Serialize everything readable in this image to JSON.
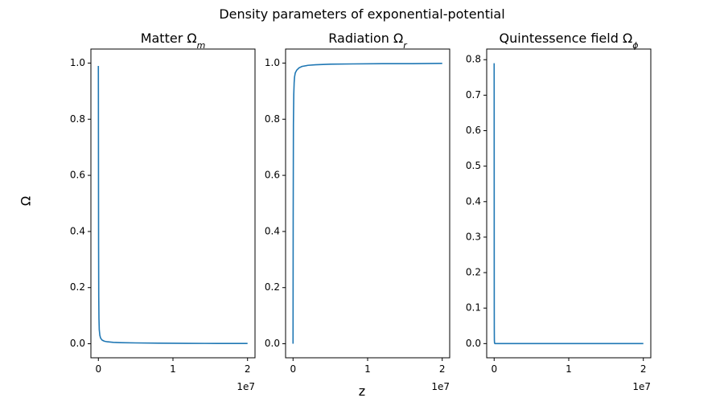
{
  "figure": {
    "suptitle": "Density parameters of exponential-potential",
    "ylabel": "Ω",
    "xlabel": "z"
  },
  "chart_data": [
    {
      "type": "line",
      "title": "Matter Ω",
      "title_sub": "m",
      "x_offset_label": "1e7",
      "xlim": [
        -0.1,
        2.1
      ],
      "ylim": [
        -0.05,
        1.05
      ],
      "xticks": [
        0,
        1,
        2
      ],
      "yticks": [
        0.0,
        0.2,
        0.4,
        0.6,
        0.8,
        1.0
      ],
      "ytick_labels": [
        "0.0",
        "0.2",
        "0.4",
        "0.6",
        "0.8",
        "1.0"
      ],
      "series": [
        {
          "color": "#1f77b4",
          "x": [
            0,
            0.0006,
            0.0012,
            0.002,
            0.003,
            0.005,
            0.008,
            0.012,
            0.02,
            0.03,
            0.05,
            0.08,
            0.12,
            0.2,
            0.3,
            0.5,
            0.8,
            1.2,
            1.6,
            2.0
          ],
          "y": [
            0.99,
            0.9,
            0.75,
            0.55,
            0.35,
            0.17,
            0.09,
            0.05,
            0.03,
            0.02,
            0.013,
            0.009,
            0.007,
            0.005,
            0.004,
            0.003,
            0.002,
            0.0015,
            0.001,
            0.001
          ]
        }
      ]
    },
    {
      "type": "line",
      "title": "Radiation Ω",
      "title_sub": "r",
      "x_offset_label": "1e7",
      "xlim": [
        -0.1,
        2.1
      ],
      "ylim": [
        -0.05,
        1.05
      ],
      "xticks": [
        0,
        1,
        2
      ],
      "yticks": [
        0.0,
        0.2,
        0.4,
        0.6,
        0.8,
        1.0
      ],
      "ytick_labels": [
        "0.0",
        "0.2",
        "0.4",
        "0.6",
        "0.8",
        "1.0"
      ],
      "series": [
        {
          "color": "#1f77b4",
          "x": [
            0,
            0.002,
            0.005,
            0.01,
            0.015,
            0.02,
            0.03,
            0.05,
            0.08,
            0.12,
            0.2,
            0.3,
            0.5,
            0.8,
            1.2,
            1.6,
            2.0
          ],
          "y": [
            0.0,
            0.45,
            0.78,
            0.89,
            0.93,
            0.95,
            0.965,
            0.975,
            0.983,
            0.988,
            0.992,
            0.994,
            0.996,
            0.997,
            0.998,
            0.998,
            0.999
          ]
        }
      ]
    },
    {
      "type": "line",
      "title": "Quintessence field Ω",
      "title_sub": "ϕ",
      "x_offset_label": "1e7",
      "xlim": [
        -0.1,
        2.1
      ],
      "ylim": [
        -0.04,
        0.83
      ],
      "xticks": [
        0,
        1,
        2
      ],
      "yticks": [
        0.0,
        0.1,
        0.2,
        0.3,
        0.4,
        0.5,
        0.6,
        0.7,
        0.8
      ],
      "ytick_labels": [
        "0.0",
        "0.1",
        "0.2",
        "0.3",
        "0.4",
        "0.5",
        "0.6",
        "0.7",
        "0.8"
      ],
      "series": [
        {
          "color": "#1f77b4",
          "x": [
            0,
            0.0003,
            0.0007,
            0.001,
            0.0015,
            0.002,
            0.003,
            0.005,
            0.01,
            0.05,
            0.2,
            0.5,
            1.0,
            1.5,
            2.0
          ],
          "y": [
            0.79,
            0.7,
            0.45,
            0.25,
            0.1,
            0.04,
            0.01,
            0.002,
            0.0,
            0.0,
            0.0,
            0.0,
            0.0,
            0.0,
            0.0
          ]
        }
      ]
    }
  ]
}
